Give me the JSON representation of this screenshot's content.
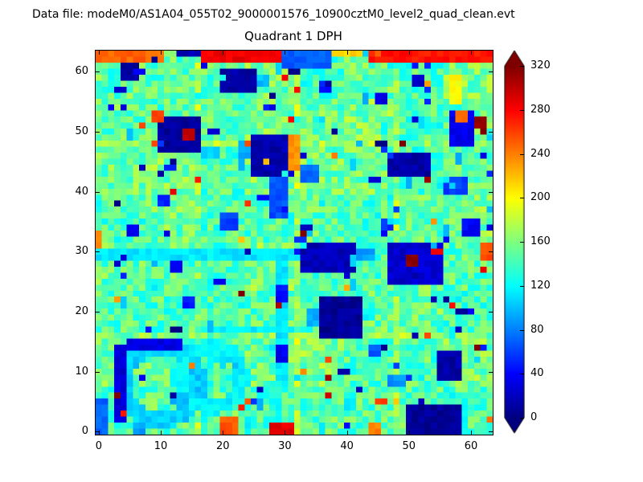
{
  "header": {
    "data_file_label": "Data file: modeM0/AS1A04_055T02_9000001576_10900cztM0_level2_quad_clean.evt"
  },
  "chart_data": {
    "type": "heatmap",
    "title": "Quadrant 1 DPH",
    "colormap": "jet",
    "grid_size": 64,
    "x_ticks": [
      0,
      10,
      20,
      30,
      40,
      50,
      60
    ],
    "y_ticks": [
      0,
      10,
      20,
      30,
      40,
      50,
      60
    ],
    "colorbar_ticks": [
      0,
      40,
      80,
      120,
      160,
      200,
      240,
      280,
      320
    ],
    "vmin": 0,
    "vmax": 320,
    "colorbar_extend": "both",
    "background": {
      "mean": 150,
      "noise": 26,
      "seed": 987654,
      "block_mottle": 10
    },
    "module_cols": [
      16,
      32,
      48
    ],
    "module_rows": [
      16,
      48
    ],
    "module_boost": 20,
    "features": [
      {
        "shape": "rect",
        "x": 0,
        "y": 62,
        "w": 11,
        "h": 2,
        "v": 250
      },
      {
        "shape": "rect",
        "x": 11,
        "y": 63,
        "w": 2,
        "h": 1,
        "v": 160
      },
      {
        "shape": "rect",
        "x": 13,
        "y": 63,
        "w": 4,
        "h": 1,
        "v": 15
      },
      {
        "shape": "rect",
        "x": 17,
        "y": 62,
        "w": 13,
        "h": 2,
        "v": 285
      },
      {
        "shape": "rect",
        "x": 30,
        "y": 61,
        "w": 8,
        "h": 3,
        "v": 70
      },
      {
        "shape": "rect",
        "x": 38,
        "y": 63,
        "w": 6,
        "h": 1,
        "v": 215
      },
      {
        "shape": "rect",
        "x": 44,
        "y": 62,
        "w": 20,
        "h": 2,
        "v": 275
      },
      {
        "shape": "rect",
        "x": 47,
        "y": 61,
        "w": 3,
        "h": 1,
        "v": 120
      },
      {
        "shape": "rect",
        "x": 4,
        "y": 59,
        "w": 3,
        "h": 3,
        "v": 8
      },
      {
        "shape": "rect",
        "x": 20,
        "y": 57,
        "w": 6,
        "h": 4,
        "v": 12
      },
      {
        "shape": "rect",
        "x": 26,
        "y": 58,
        "w": 2,
        "h": 2,
        "v": 100
      },
      {
        "shape": "rect",
        "x": 51,
        "y": 58,
        "w": 2,
        "h": 2,
        "v": 25
      },
      {
        "shape": "rect",
        "x": 57,
        "y": 55,
        "w": 2,
        "h": 5,
        "v": 200
      },
      {
        "shape": "rect",
        "x": 10,
        "y": 47,
        "w": 7,
        "h": 6,
        "v": 8
      },
      {
        "shape": "rect",
        "x": 14,
        "y": 49,
        "w": 2,
        "h": 2,
        "v": 300
      },
      {
        "shape": "rect",
        "x": 9,
        "y": 52,
        "w": 2,
        "h": 2,
        "v": 260
      },
      {
        "shape": "rect",
        "x": 17,
        "y": 46,
        "w": 3,
        "h": 2,
        "v": 110
      },
      {
        "shape": "rect",
        "x": 25,
        "y": 43,
        "w": 7,
        "h": 7,
        "v": 15
      },
      {
        "shape": "rect",
        "x": 23,
        "y": 46,
        "w": 2,
        "h": 3,
        "v": 95
      },
      {
        "shape": "rect",
        "x": 28,
        "y": 36,
        "w": 3,
        "h": 7,
        "v": 65
      },
      {
        "shape": "rect",
        "x": 31,
        "y": 44,
        "w": 2,
        "h": 6,
        "v": 235
      },
      {
        "shape": "rect",
        "x": 33,
        "y": 42,
        "w": 3,
        "h": 3,
        "v": 75
      },
      {
        "shape": "rect",
        "x": 30,
        "y": 50,
        "w": 3,
        "h": 2,
        "v": 150
      },
      {
        "shape": "rect",
        "x": 47,
        "y": 43,
        "w": 7,
        "h": 4,
        "v": 12
      },
      {
        "shape": "rect",
        "x": 54,
        "y": 44,
        "w": 2,
        "h": 2,
        "v": 130
      },
      {
        "shape": "rect",
        "x": 56,
        "y": 40,
        "w": 4,
        "h": 3,
        "v": 60
      },
      {
        "shape": "rect",
        "x": 57,
        "y": 48,
        "w": 4,
        "h": 6,
        "v": 35
      },
      {
        "shape": "rect",
        "x": 61,
        "y": 51,
        "w": 2,
        "h": 2,
        "v": 310
      },
      {
        "shape": "rect",
        "x": 58,
        "y": 52,
        "w": 2,
        "h": 2,
        "v": 250
      },
      {
        "shape": "rect",
        "x": 0,
        "y": 29,
        "w": 36,
        "h": 2,
        "v": 112
      },
      {
        "shape": "rect",
        "x": 33,
        "y": 27,
        "w": 9,
        "h": 5,
        "v": 18
      },
      {
        "shape": "rect",
        "x": 42,
        "y": 29,
        "w": 3,
        "h": 2,
        "v": 90
      },
      {
        "shape": "rect",
        "x": 47,
        "y": 25,
        "w": 9,
        "h": 7,
        "v": 25
      },
      {
        "shape": "rect",
        "x": 50,
        "y": 28,
        "w": 2,
        "h": 2,
        "v": 320
      },
      {
        "shape": "rect",
        "x": 54,
        "y": 30,
        "w": 2,
        "h": 1,
        "v": 280
      },
      {
        "shape": "rect",
        "x": 48,
        "y": 23,
        "w": 3,
        "h": 2,
        "v": 140
      },
      {
        "shape": "rect",
        "x": 36,
        "y": 16,
        "w": 7,
        "h": 7,
        "v": 8
      },
      {
        "shape": "rect",
        "x": 34,
        "y": 18,
        "w": 2,
        "h": 3,
        "v": 95
      },
      {
        "shape": "rect",
        "x": 43,
        "y": 19,
        "w": 2,
        "h": 2,
        "v": 120
      },
      {
        "shape": "rect",
        "x": 29,
        "y": 8,
        "w": 2,
        "h": 21,
        "v": 112
      },
      {
        "shape": "rect",
        "x": 29,
        "y": 12,
        "w": 2,
        "h": 3,
        "v": 35
      },
      {
        "shape": "rect",
        "x": 29,
        "y": 22,
        "w": 2,
        "h": 3,
        "v": 45
      },
      {
        "shape": "rect",
        "x": 27,
        "y": 6,
        "w": 3,
        "h": 3,
        "v": 130
      },
      {
        "shape": "ring",
        "cx": 10,
        "cy": 8,
        "r": 6,
        "rw": 1.4,
        "v": 105
      },
      {
        "shape": "ring",
        "cx": 18,
        "cy": 9,
        "r": 5,
        "rw": 1.3,
        "v": 118
      },
      {
        "shape": "rect",
        "x": 3,
        "y": 2,
        "w": 2,
        "h": 13,
        "v": 28
      },
      {
        "shape": "rect",
        "x": 5,
        "y": 14,
        "w": 9,
        "h": 2,
        "v": 32
      },
      {
        "shape": "rect",
        "x": 0,
        "y": 0,
        "w": 2,
        "h": 6,
        "v": 70
      },
      {
        "shape": "rect",
        "x": 6,
        "y": 0,
        "w": 2,
        "h": 2,
        "v": 90
      },
      {
        "shape": "rect",
        "x": 20,
        "y": 0,
        "w": 3,
        "h": 3,
        "v": 255
      },
      {
        "shape": "rect",
        "x": 24,
        "y": 1,
        "w": 2,
        "h": 2,
        "v": 120
      },
      {
        "shape": "rect",
        "x": 28,
        "y": 0,
        "w": 4,
        "h": 2,
        "v": 290
      },
      {
        "shape": "rect",
        "x": 33,
        "y": 0,
        "w": 2,
        "h": 1,
        "v": 150
      },
      {
        "shape": "rect",
        "x": 50,
        "y": 0,
        "w": 9,
        "h": 5,
        "v": 8
      },
      {
        "shape": "rect",
        "x": 55,
        "y": 9,
        "w": 4,
        "h": 5,
        "v": 12
      },
      {
        "shape": "rect",
        "x": 47,
        "y": 8,
        "w": 3,
        "h": 2,
        "v": 85
      },
      {
        "shape": "rect",
        "x": 44,
        "y": 13,
        "w": 2,
        "h": 2,
        "v": 65
      },
      {
        "shape": "rect",
        "x": 62,
        "y": 29,
        "w": 2,
        "h": 3,
        "v": 255
      },
      {
        "shape": "rect",
        "x": 0,
        "y": 31,
        "w": 1,
        "h": 3,
        "v": 240
      },
      {
        "shape": "rect",
        "x": 20,
        "y": 34,
        "w": 3,
        "h": 3,
        "v": 60
      },
      {
        "shape": "rect",
        "x": 5,
        "y": 33,
        "w": 2,
        "h": 2,
        "v": 40
      },
      {
        "shape": "rect",
        "x": 12,
        "y": 27,
        "w": 2,
        "h": 2,
        "v": 35
      },
      {
        "shape": "rect",
        "x": 45,
        "y": 55,
        "w": 2,
        "h": 2,
        "v": 30
      },
      {
        "shape": "rect",
        "x": 36,
        "y": 57,
        "w": 2,
        "h": 2,
        "v": 45
      },
      {
        "shape": "rect",
        "x": 10,
        "y": 38,
        "w": 2,
        "h": 2,
        "v": 50
      },
      {
        "shape": "rect",
        "x": 46,
        "y": 34,
        "w": 2,
        "h": 2,
        "v": 55
      },
      {
        "shape": "rect",
        "x": 59,
        "y": 33,
        "w": 3,
        "h": 3,
        "v": 40
      },
      {
        "shape": "rect",
        "x": 14,
        "y": 21,
        "w": 2,
        "h": 2,
        "v": 45
      },
      {
        "shape": "rect",
        "x": 8,
        "y": 24,
        "w": 2,
        "h": 2,
        "v": 120
      },
      {
        "shape": "rect",
        "x": 18,
        "y": 17,
        "w": 14,
        "h": 1,
        "v": 115
      },
      {
        "shape": "rect",
        "x": 12,
        "y": 5,
        "w": 3,
        "h": 2,
        "v": 100
      },
      {
        "shape": "rect",
        "x": 40,
        "y": 4,
        "w": 2,
        "h": 2,
        "v": 110
      },
      {
        "shape": "rect",
        "x": 44,
        "y": 0,
        "w": 2,
        "h": 2,
        "v": 240
      }
    ],
    "speckles": {
      "dark_count": 70,
      "dark_max": 60,
      "bright_count": 40,
      "bright_min": 215,
      "bright_max": 330,
      "cyan_count": 55,
      "cyan_min": 90,
      "cyan_max": 130
    }
  }
}
